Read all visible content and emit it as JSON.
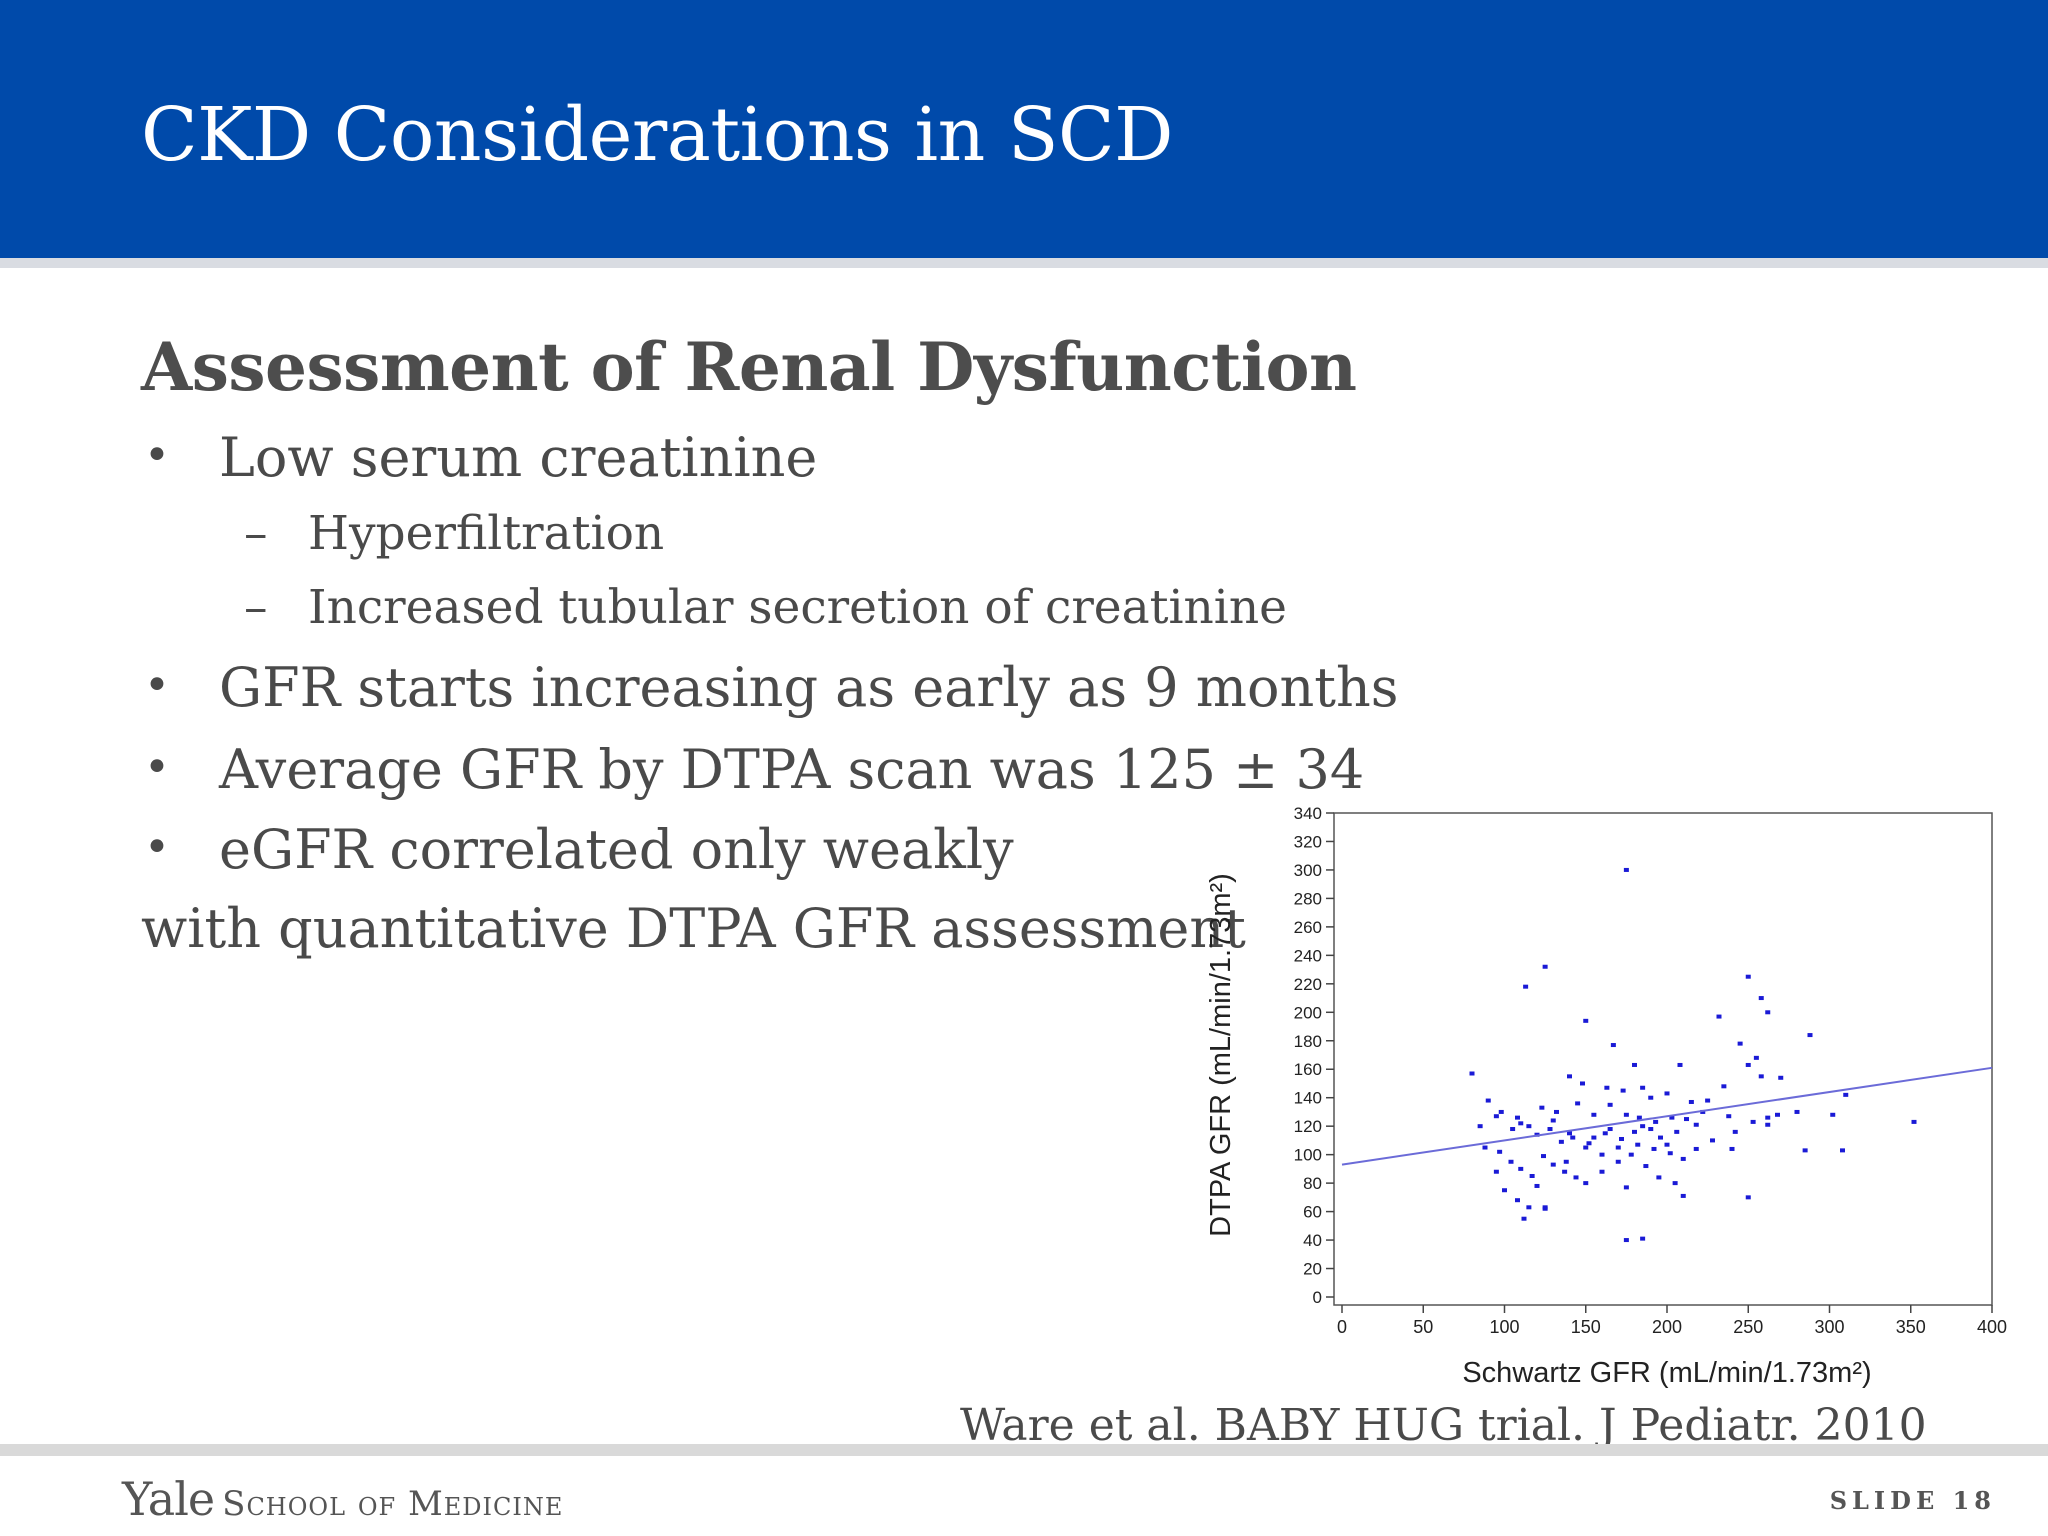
{
  "slide": {
    "title": "CKD Considerations in SCD",
    "heading": "Assessment of Renal Dysfunction",
    "bullets": [
      "Low serum creatinine",
      "GFR starts increasing as early as 9 months",
      "Average GFR by DTPA scan was 125 ± 34",
      "eGFR correlated only weakly"
    ],
    "subbullets": [
      "Hyperfiltration",
      "Increased tubular secretion of creatinine"
    ],
    "bullet_marker": "•",
    "sub_marker": "–",
    "continuation": "with quantitative DTPA GFR assessment",
    "citation": "Ware et al. BABY HUG trial. J Pediatr. 2010"
  },
  "footer": {
    "logo_yale": "Yale",
    "logo_school": "School of Medicine",
    "slide_number": "SLIDE 18"
  },
  "colors": {
    "header": "#004aaa",
    "points": "#1a1ad6",
    "trendline": "#6b6bd8"
  },
  "chart_data": {
    "type": "scatter",
    "xlabel": "Schwartz GFR (mL/min/1.73m²)",
    "ylabel": "DTPA GFR (mL/min/1.73m²)",
    "xlim": [
      0,
      400
    ],
    "ylim": [
      0,
      340
    ],
    "xticks": [
      0,
      50,
      100,
      150,
      200,
      250,
      300,
      350,
      400
    ],
    "yticks": [
      0,
      20,
      40,
      60,
      80,
      100,
      120,
      140,
      160,
      180,
      200,
      220,
      240,
      260,
      280,
      300,
      320,
      340
    ],
    "trendline": {
      "x": [
        0,
        400
      ],
      "y": [
        93,
        161
      ]
    },
    "points": [
      [
        175,
        300
      ],
      [
        125,
        232
      ],
      [
        113,
        218
      ],
      [
        150,
        194
      ],
      [
        250,
        225
      ],
      [
        258,
        210
      ],
      [
        262,
        200
      ],
      [
        232,
        197
      ],
      [
        288,
        184
      ],
      [
        167,
        177
      ],
      [
        245,
        178
      ],
      [
        255,
        168
      ],
      [
        180,
        163
      ],
      [
        208,
        163
      ],
      [
        250,
        163
      ],
      [
        270,
        154
      ],
      [
        258,
        155
      ],
      [
        235,
        148
      ],
      [
        140,
        155
      ],
      [
        148,
        150
      ],
      [
        163,
        147
      ],
      [
        173,
        145
      ],
      [
        185,
        147
      ],
      [
        200,
        143
      ],
      [
        190,
        140
      ],
      [
        215,
        137
      ],
      [
        225,
        138
      ],
      [
        123,
        133
      ],
      [
        132,
        130
      ],
      [
        145,
        136
      ],
      [
        155,
        128
      ],
      [
        165,
        135
      ],
      [
        175,
        128
      ],
      [
        183,
        126
      ],
      [
        193,
        123
      ],
      [
        203,
        126
      ],
      [
        212,
        125
      ],
      [
        222,
        130
      ],
      [
        238,
        127
      ],
      [
        253,
        123
      ],
      [
        268,
        128
      ],
      [
        280,
        130
      ],
      [
        302,
        128
      ],
      [
        310,
        142
      ],
      [
        352,
        123
      ],
      [
        80,
        157
      ],
      [
        90,
        138
      ],
      [
        95,
        127
      ],
      [
        105,
        118
      ],
      [
        110,
        122
      ],
      [
        115,
        120
      ],
      [
        120,
        114
      ],
      [
        128,
        118
      ],
      [
        135,
        109
      ],
      [
        142,
        112
      ],
      [
        152,
        108
      ],
      [
        162,
        115
      ],
      [
        172,
        111
      ],
      [
        182,
        107
      ],
      [
        192,
        104
      ],
      [
        202,
        101
      ],
      [
        210,
        97
      ],
      [
        218,
        104
      ],
      [
        228,
        110
      ],
      [
        242,
        116
      ],
      [
        262,
        121
      ],
      [
        85,
        120
      ],
      [
        88,
        105
      ],
      [
        97,
        102
      ],
      [
        104,
        95
      ],
      [
        110,
        90
      ],
      [
        117,
        85
      ],
      [
        124,
        99
      ],
      [
        130,
        93
      ],
      [
        137,
        88
      ],
      [
        144,
        84
      ],
      [
        150,
        80
      ],
      [
        160,
        88
      ],
      [
        170,
        95
      ],
      [
        178,
        100
      ],
      [
        187,
        92
      ],
      [
        195,
        84
      ],
      [
        205,
        80
      ],
      [
        100,
        75
      ],
      [
        108,
        68
      ],
      [
        115,
        63
      ],
      [
        125,
        63
      ],
      [
        112,
        55
      ],
      [
        125,
        62
      ],
      [
        175,
        77
      ],
      [
        210,
        71
      ],
      [
        250,
        70
      ],
      [
        175,
        40
      ],
      [
        185,
        41
      ],
      [
        95,
        88
      ],
      [
        120,
        78
      ],
      [
        138,
        95
      ],
      [
        155,
        112
      ],
      [
        165,
        118
      ],
      [
        185,
        120
      ],
      [
        196,
        112
      ],
      [
        206,
        116
      ],
      [
        218,
        121
      ],
      [
        285,
        103
      ],
      [
        308,
        103
      ],
      [
        98,
        130
      ],
      [
        108,
        126
      ],
      [
        130,
        124
      ],
      [
        140,
        115
      ],
      [
        150,
        105
      ],
      [
        160,
        100
      ],
      [
        170,
        105
      ],
      [
        180,
        116
      ],
      [
        190,
        118
      ],
      [
        200,
        107
      ],
      [
        240,
        104
      ],
      [
        262,
        126
      ]
    ]
  }
}
